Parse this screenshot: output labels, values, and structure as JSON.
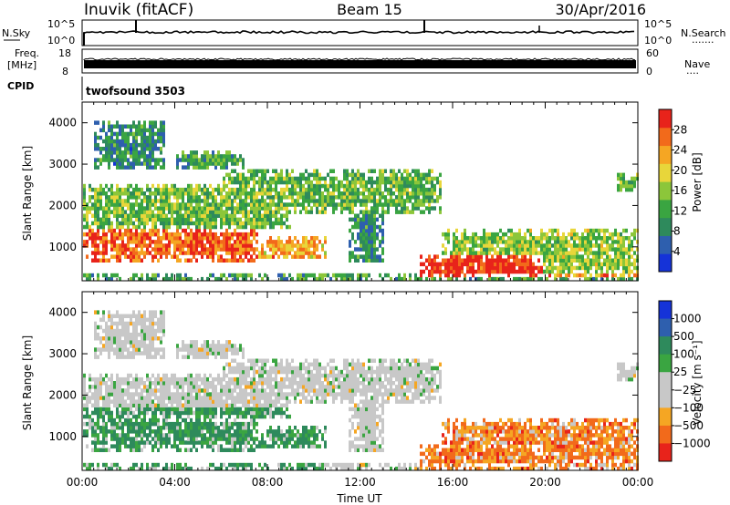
{
  "header": {
    "station": "Inuvik (fitACF)",
    "beam": "Beam 15",
    "date": "30/Apr/2016"
  },
  "summary_panels": {
    "nsky": {
      "label": "N.Sky",
      "left_ticks": [
        "10^5",
        "10^0"
      ],
      "right_ticks": [
        "10^5",
        "10^0"
      ],
      "right_label": "N.Search",
      "right_legend": "·······"
    },
    "freq": {
      "label_line1": "Freq.",
      "label_line2": "[MHz]",
      "left_ticks": [
        "18",
        "8"
      ],
      "right_ticks": [
        "60",
        "0"
      ],
      "right_label": "Nave",
      "right_legend": "····"
    },
    "cpid": {
      "label": "CPID",
      "value": "twofsound 3503"
    }
  },
  "colors": {
    "power": [
      "#1533d8",
      "#2e5fae",
      "#2e8a5c",
      "#3aa541",
      "#8cc63a",
      "#e8d63a",
      "#f5a623",
      "#f26a1b",
      "#e8231b"
    ],
    "velocity": [
      "#1533d8",
      "#2e5fae",
      "#2e8a5c",
      "#3aa541",
      "#c8c8c8",
      "#c8c8c8",
      "#f5a623",
      "#f26a1b",
      "#e8231b"
    ]
  },
  "chart_data": [
    {
      "type": "heatmap",
      "name": "power",
      "ylabel": "Slant Range [km]",
      "yticks": [
        "1000",
        "2000",
        "3000",
        "4000"
      ],
      "ylim": [
        180,
        4500
      ],
      "colorbar_label": "Power [dB]",
      "colorbar_ticks": [
        "4",
        "8",
        "12",
        "16",
        "20",
        "24",
        "28"
      ],
      "clim": [
        0,
        32
      ]
    },
    {
      "type": "heatmap",
      "name": "velocity",
      "ylabel": "Slant Range [km]",
      "yticks": [
        "1000",
        "2000",
        "3000",
        "4000"
      ],
      "ylim": [
        180,
        4500
      ],
      "xlabel": "Time UT",
      "xticks": [
        "00:00",
        "04:00",
        "08:00",
        "12:00",
        "16:00",
        "20:00",
        "00:00"
      ],
      "colorbar_label": "Velocity [m s⁻¹]",
      "colorbar_ticks": [
        "1000",
        "500",
        "100",
        "25",
        "−25",
        "−100",
        "−500",
        "−1000"
      ]
    }
  ]
}
